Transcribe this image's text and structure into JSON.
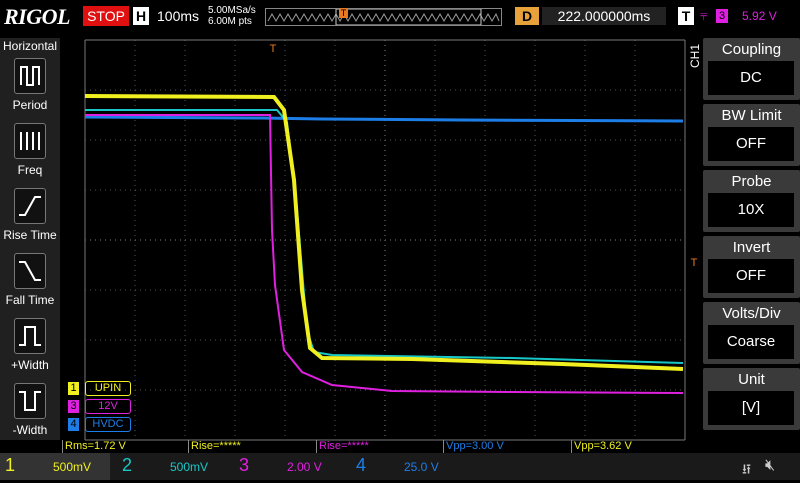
{
  "top_bar": {
    "logo": "RIGOL",
    "status": "STOP",
    "timebase_label": "H",
    "timebase": "100ms",
    "sample_rate": "5.00MSa/s",
    "memory_depth": "6.00M pts",
    "trigger_marker": "T",
    "delay_label": "D",
    "delay": "222.000000ms",
    "trigger_label": "T",
    "trigger_source": "3",
    "trigger_level": "5.92 V"
  },
  "left_panel": {
    "title": "Horizontal",
    "items": [
      "Period",
      "Freq",
      "Rise Time",
      "Fall Time",
      "+Width",
      "-Width"
    ]
  },
  "right_panel": {
    "channel": "CH1",
    "menus": [
      {
        "label": "Coupling",
        "value": "DC"
      },
      {
        "label": "BW Limit",
        "value": "OFF"
      },
      {
        "label": "Probe",
        "value": "10X"
      },
      {
        "label": "Invert",
        "value": "OFF"
      },
      {
        "label": "Volts/Div",
        "value": "Coarse"
      },
      {
        "label": "Unit",
        "value": "[V]"
      }
    ]
  },
  "channel_tags": [
    {
      "number": "1",
      "label": "UPIN"
    },
    {
      "number": "3",
      "label": "12V"
    },
    {
      "number": "4",
      "label": "HVDC"
    }
  ],
  "measurements": [
    "Rms=1.72 V",
    "Rise=*****",
    "Rise=*****",
    "Vpp=3.00 V",
    "Vpp=3.62 V"
  ],
  "channels": [
    {
      "number": "1",
      "scale": "500mV"
    },
    {
      "number": "2",
      "scale": "500mV"
    },
    {
      "number": "3",
      "scale": "2.00 V"
    },
    {
      "number": "4",
      "scale": "25.0 V"
    }
  ]
}
